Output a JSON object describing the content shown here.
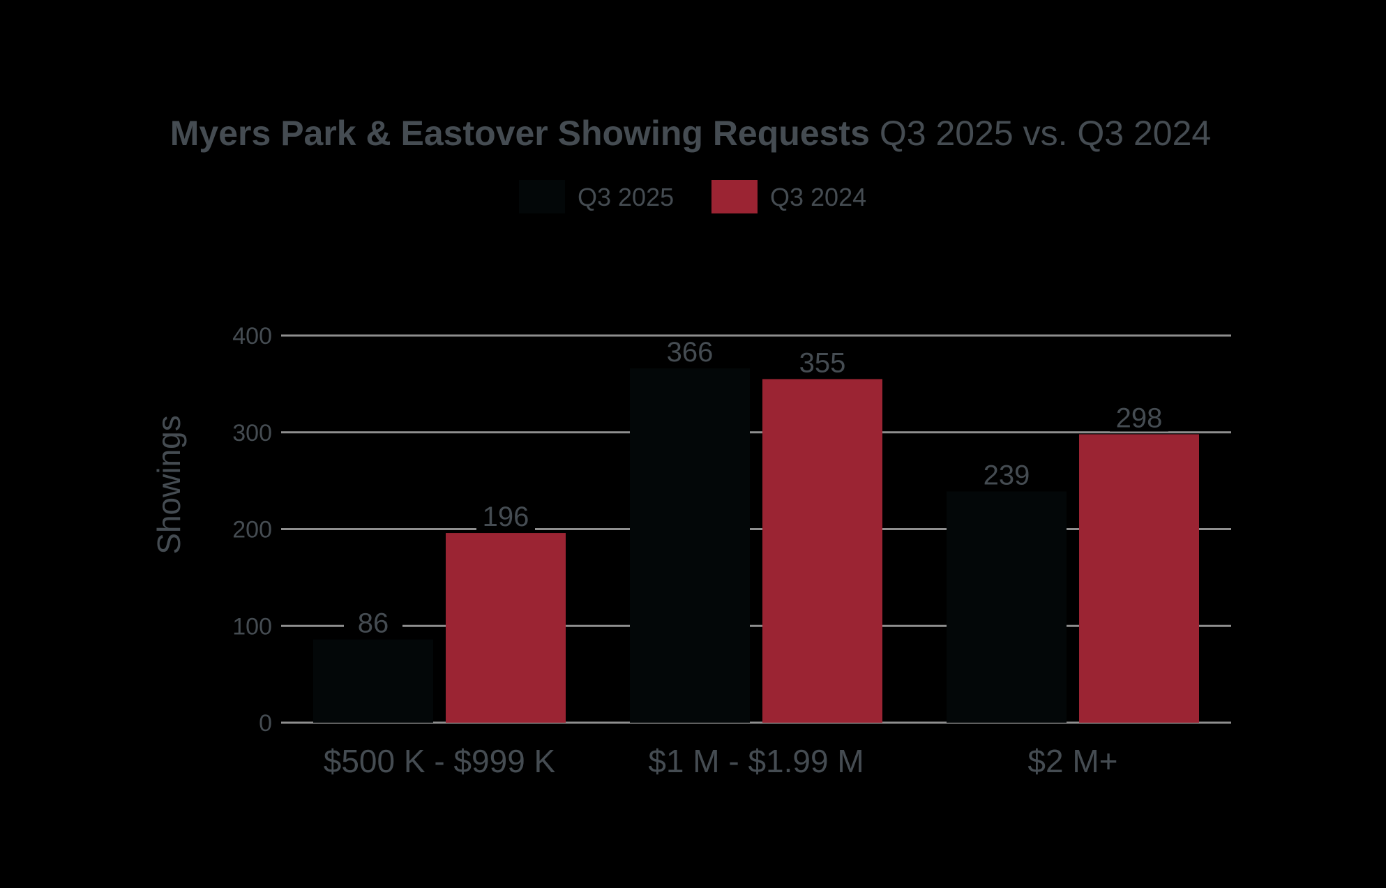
{
  "chart_data": {
    "type": "bar",
    "title_bold": "Myers Park & Eastover Showing Requests",
    "title_rest": "Q3 2025 vs. Q3 2024",
    "xlabel": "",
    "ylabel": "Showings",
    "categories": [
      "$500 K - $999 K",
      "$1 M - $1.99 M",
      "$2 M+"
    ],
    "series": [
      {
        "name": "Q3 2025",
        "values": [
          86,
          366,
          239
        ],
        "color": "#030708"
      },
      {
        "name": "Q3 2024",
        "values": [
          196,
          355,
          298
        ],
        "color": "#9b2433"
      }
    ],
    "ylim": [
      0,
      400
    ],
    "yticks": [
      0,
      100,
      200,
      300,
      400
    ],
    "grid": true,
    "legend": "top-center",
    "colors": {
      "background": "#000000",
      "text": "#454c52",
      "grid": "#8f8f8f"
    }
  }
}
